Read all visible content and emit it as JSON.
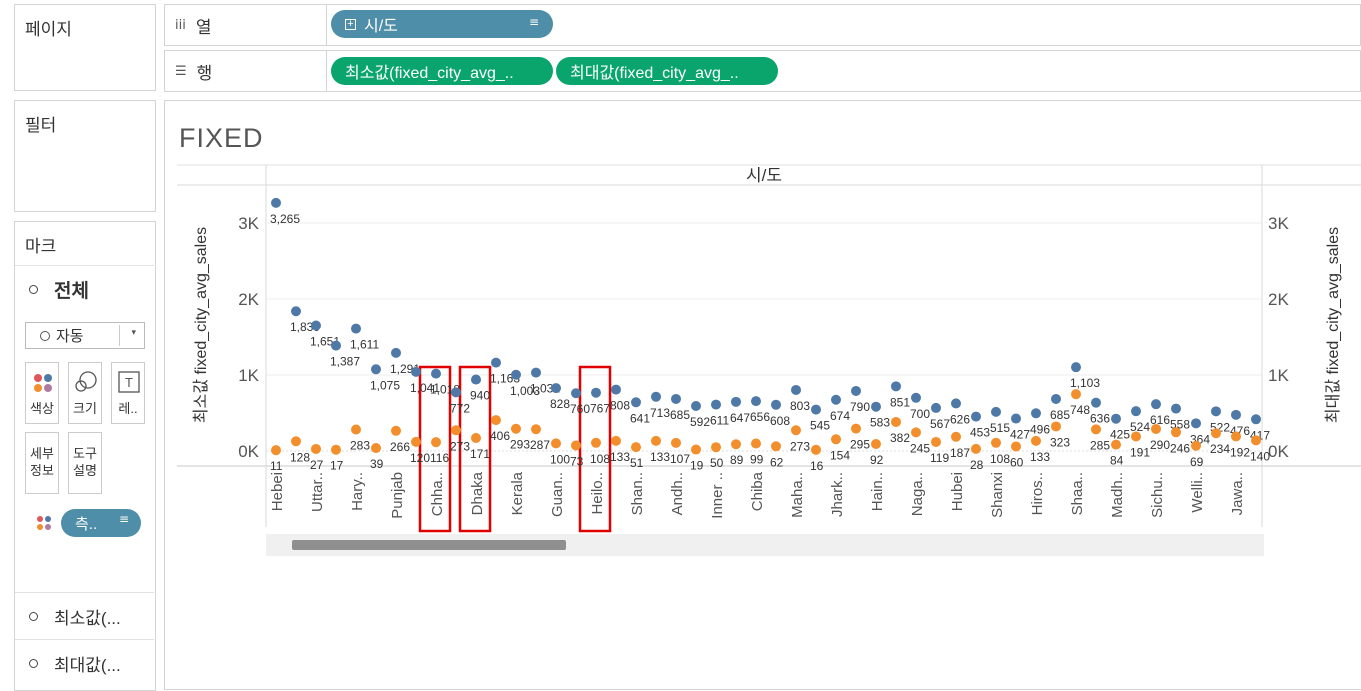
{
  "pages_panel": {
    "title": "페이지"
  },
  "filters_panel": {
    "title": "필터"
  },
  "marks_panel": {
    "title": "마크",
    "all_label": "전체",
    "mark_type": "자동",
    "cards": {
      "color": "색상",
      "size": "크기",
      "label": "레..",
      "detail_line1": "세부",
      "detail_line2": "정보",
      "tooltip_line1": "도구",
      "tooltip_line2": "설명"
    },
    "measure_pill": "측..",
    "sections": [
      "최소값(...",
      "최대값(..."
    ]
  },
  "columns_shelf": {
    "label": "열",
    "pill": "시/도"
  },
  "rows_shelf": {
    "label": "행",
    "pills": [
      "최소값(fixed_city_avg_..",
      "최대값(fixed_city_avg_.."
    ]
  },
  "viz": {
    "title": "FIXED",
    "header": "시/도",
    "left_axis_title": "최소값 fixed_city_avg_sales",
    "right_axis_title": "최대값 fixed_city_avg_sales",
    "ticks": [
      "0K",
      "1K",
      "2K",
      "3K"
    ]
  },
  "chart_data": {
    "type": "scatter",
    "categories": [
      "Hebei",
      "",
      "Uttar..",
      "",
      "Hary..",
      "",
      "Punjab",
      "",
      "Chha..",
      "",
      "Dhaka",
      "",
      "Kerala",
      "",
      "Guan..",
      "",
      "Heilo..",
      "",
      "Shan..",
      "",
      "Andh..",
      "",
      "Inner ..",
      "",
      "Chiba",
      "",
      "Maha..",
      "",
      "Jhark..",
      "",
      "Hain..",
      "",
      "Naga..",
      "",
      "Hubei",
      "",
      "Shanxi",
      "",
      "Hiros..",
      "",
      "Shaa..",
      "",
      "Madh..",
      "",
      "Sichu..",
      "",
      "Welli..",
      "",
      "Jawa.."
    ],
    "series": [
      {
        "name": "최대값 fixed_city_avg_sales",
        "color": "#4e79a7",
        "values": [
          3265,
          1839,
          1651,
          1387,
          1611,
          1075,
          1291,
          1041,
          1018,
          772,
          940,
          1163,
          1003,
          1032,
          828,
          760,
          767,
          808,
          641,
          713,
          685,
          592,
          611,
          647,
          656,
          608,
          803,
          545,
          674,
          790,
          583,
          851,
          700,
          567,
          626,
          453,
          515,
          427,
          496,
          685,
          1103,
          636,
          425,
          524,
          616,
          558,
          364,
          522,
          476,
          417
        ],
        "labels": [
          "3,265",
          "1,839",
          "1,651",
          "1,387",
          "1,611",
          "1,075",
          "1,291",
          "1,041",
          "1,018",
          "772",
          "940",
          "1,163",
          "1,003",
          "1,032",
          "828",
          "760",
          "767",
          "808",
          "641",
          "713",
          "685",
          "592",
          "611",
          "647",
          "656",
          "608",
          "803",
          "545",
          "674",
          "790",
          "583",
          "851",
          "700",
          "567",
          "626",
          "453",
          "515",
          "427",
          "496",
          "685",
          "1,103",
          "636",
          "425",
          "524",
          "616",
          "558",
          "364",
          "522",
          "476",
          "417"
        ]
      },
      {
        "name": "최소값 fixed_city_avg_sales",
        "color": "#f28e2b",
        "values": [
          11,
          128,
          27,
          17,
          283,
          39,
          266,
          120,
          116,
          273,
          171,
          406,
          293,
          287,
          100,
          73,
          108,
          133,
          51,
          133,
          107,
          19,
          50,
          89,
          99,
          62,
          273,
          16,
          154,
          295,
          92,
          382,
          245,
          119,
          187,
          28,
          108,
          60,
          133,
          323,
          748,
          285,
          84,
          191,
          290,
          246,
          69,
          234,
          192,
          140
        ],
        "labels": [
          "11",
          "128",
          "27",
          "17",
          "283",
          "39",
          "266",
          "120",
          "116",
          "273",
          "171",
          "406",
          "293",
          "287",
          "100",
          "73",
          "108",
          "133",
          "51",
          "133",
          "107",
          "19",
          "50",
          "89",
          "99",
          "62",
          "273",
          "16",
          "154",
          "295",
          "92",
          "382",
          "245",
          "119",
          "187",
          "28",
          "108",
          "60",
          "133",
          "323",
          "748",
          "285",
          "84",
          "191",
          "290",
          "246",
          "69",
          "234",
          "192",
          "140"
        ]
      }
    ],
    "ylim": [
      0,
      3400
    ],
    "grid": true,
    "highlighted_categories": [
      "Chha..",
      "Dhaka",
      "Heilo.."
    ],
    "highlight_color": "#e00000"
  }
}
